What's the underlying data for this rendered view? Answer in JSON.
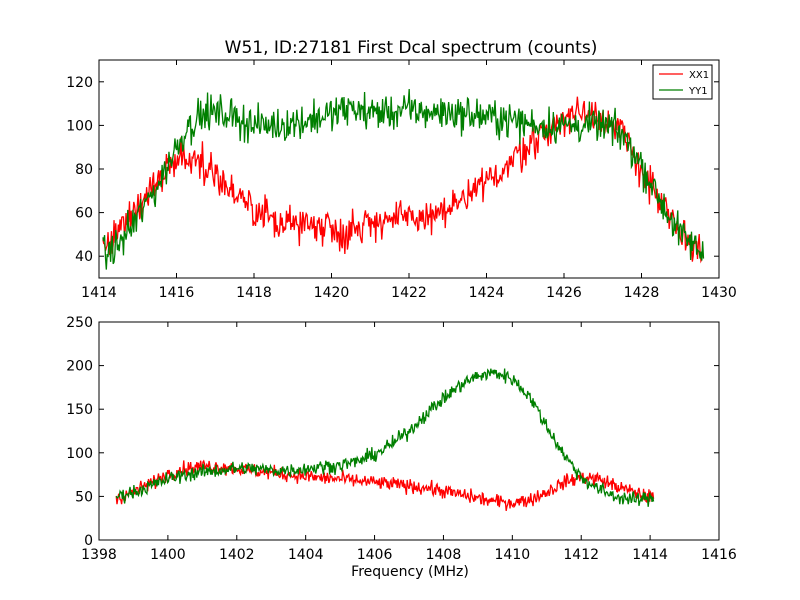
{
  "title": "W51, ID:27181 First Dcal spectrum (counts)",
  "colors": {
    "XX1": "#ff0000",
    "YY1": "#007f00"
  },
  "chart_data": [
    {
      "type": "line",
      "title": "W51, ID:27181 First Dcal spectrum (counts)",
      "xlabel": "",
      "ylabel": "",
      "xlim": [
        1414,
        1430
      ],
      "ylim": [
        30,
        130
      ],
      "xticks": [
        1414,
        1416,
        1418,
        1420,
        1422,
        1424,
        1426,
        1428,
        1430
      ],
      "yticks": [
        40,
        60,
        80,
        100,
        120
      ],
      "grid": false,
      "legend": {
        "position": "top-right",
        "entries": [
          "XX1",
          "YY1"
        ]
      },
      "noise": 4,
      "series": [
        {
          "name": "XX1",
          "color": "#ff0000",
          "x": [
            1414.1,
            1414.5,
            1415.0,
            1415.5,
            1416.0,
            1416.3,
            1416.6,
            1417.0,
            1417.5,
            1418.0,
            1418.5,
            1419.0,
            1419.5,
            1420.0,
            1420.3,
            1420.6,
            1421.0,
            1421.5,
            1422.0,
            1422.5,
            1423.0,
            1423.5,
            1424.0,
            1424.5,
            1425.0,
            1425.5,
            1426.0,
            1426.5,
            1427.0,
            1427.5,
            1428.0,
            1428.5,
            1429.0,
            1429.6
          ],
          "y": [
            45,
            52,
            63,
            75,
            84,
            86,
            84,
            78,
            68,
            60,
            57,
            55,
            55,
            54,
            50,
            53,
            56,
            57,
            57,
            58,
            61,
            66,
            74,
            81,
            90,
            97,
            103,
            107,
            104,
            96,
            80,
            64,
            50,
            43
          ]
        },
        {
          "name": "YY1",
          "color": "#007f00",
          "x": [
            1414.1,
            1414.5,
            1415.0,
            1415.5,
            1416.0,
            1416.3,
            1416.6,
            1417.0,
            1417.5,
            1418.0,
            1418.5,
            1419.0,
            1419.5,
            1420.0,
            1420.5,
            1421.0,
            1421.5,
            1422.0,
            1422.5,
            1423.0,
            1423.5,
            1424.0,
            1424.5,
            1425.0,
            1425.5,
            1426.0,
            1426.5,
            1427.0,
            1427.5,
            1428.0,
            1428.5,
            1429.0,
            1429.6
          ],
          "y": [
            40,
            45,
            58,
            72,
            90,
            100,
            104,
            106,
            104,
            100,
            100,
            101,
            103,
            105,
            108,
            106,
            106,
            107,
            106,
            106,
            105,
            104,
            103,
            101,
            100,
            100,
            100,
            100,
            96,
            82,
            65,
            50,
            41
          ]
        }
      ]
    },
    {
      "type": "line",
      "title": "",
      "xlabel": "Frequency (MHz)",
      "ylabel": "",
      "xlim": [
        1398,
        1416
      ],
      "ylim": [
        0,
        250
      ],
      "xticks": [
        1398,
        1400,
        1402,
        1404,
        1406,
        1408,
        1410,
        1412,
        1414,
        1416
      ],
      "yticks": [
        0,
        50,
        100,
        150,
        200,
        250
      ],
      "grid": false,
      "noise": 4,
      "series": [
        {
          "name": "XX1",
          "color": "#ff0000",
          "x": [
            1398.5,
            1399.0,
            1399.5,
            1400.0,
            1400.5,
            1401.0,
            1401.5,
            1402.0,
            1402.5,
            1403.0,
            1403.5,
            1404.0,
            1404.5,
            1405.0,
            1405.5,
            1406.0,
            1406.5,
            1407.0,
            1407.5,
            1408.0,
            1408.5,
            1409.0,
            1409.5,
            1410.0,
            1410.5,
            1411.0,
            1411.5,
            1412.0,
            1412.5,
            1413.0,
            1413.5,
            1414.1
          ],
          "y": [
            48,
            55,
            65,
            76,
            82,
            85,
            84,
            82,
            79,
            77,
            75,
            73,
            71,
            70,
            68,
            66,
            64,
            62,
            60,
            56,
            52,
            48,
            44,
            43,
            46,
            55,
            66,
            72,
            70,
            62,
            55,
            48
          ]
        },
        {
          "name": "YY1",
          "color": "#007f00",
          "x": [
            1398.5,
            1399.0,
            1399.5,
            1400.0,
            1400.5,
            1401.0,
            1401.5,
            1402.0,
            1402.5,
            1403.0,
            1403.5,
            1404.0,
            1404.5,
            1405.0,
            1405.5,
            1406.0,
            1406.5,
            1407.0,
            1407.5,
            1408.0,
            1408.5,
            1409.0,
            1409.5,
            1410.0,
            1410.5,
            1411.0,
            1411.5,
            1412.0,
            1412.5,
            1413.0,
            1413.5,
            1414.1
          ],
          "y": [
            50,
            55,
            62,
            70,
            75,
            78,
            80,
            82,
            82,
            80,
            80,
            82,
            84,
            86,
            90,
            98,
            110,
            125,
            145,
            162,
            178,
            188,
            192,
            185,
            165,
            130,
            98,
            72,
            58,
            50,
            46,
            48
          ]
        }
      ]
    }
  ]
}
